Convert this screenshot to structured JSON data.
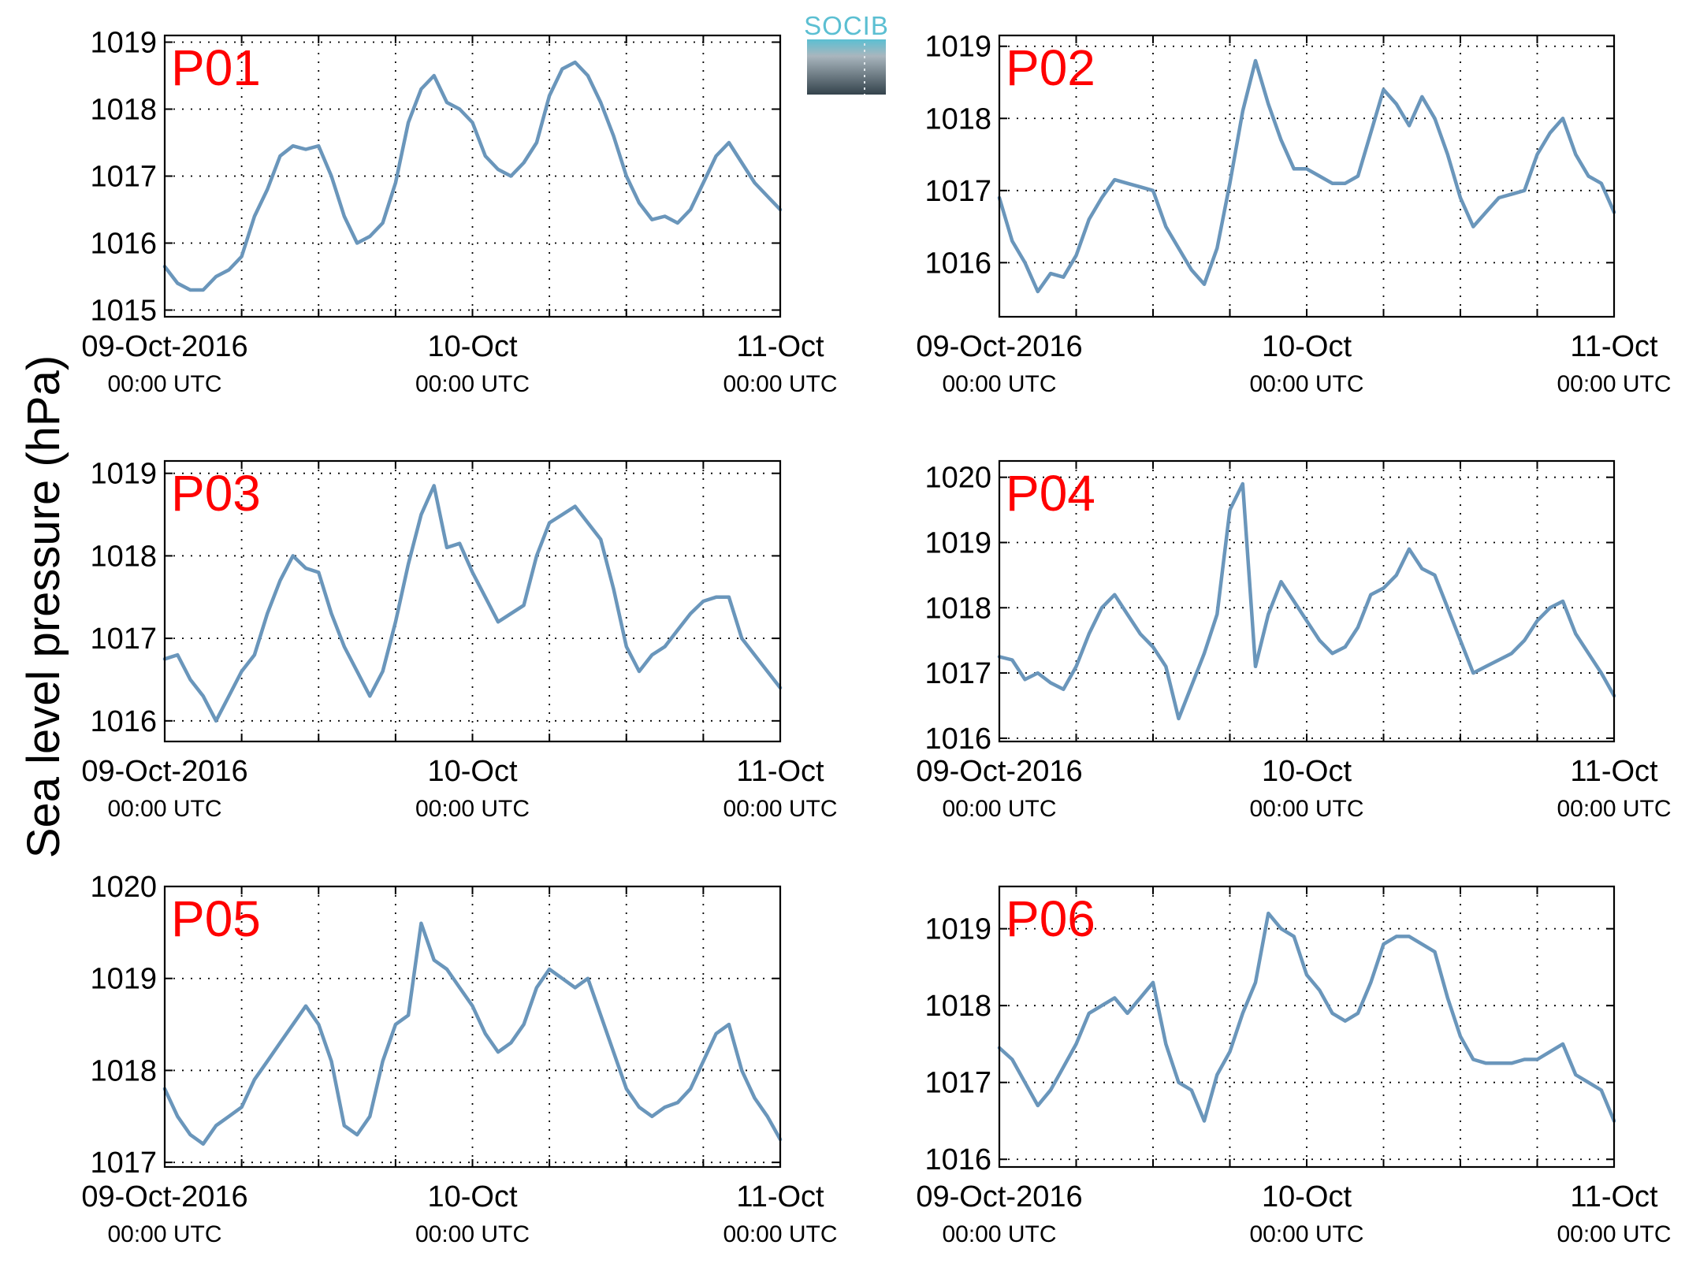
{
  "ylabel": "Sea level pressure (hPa)",
  "logo": {
    "text": "SOCIB",
    "colors": {
      "top": "#5bbfd2",
      "bottom": "#34434c"
    }
  },
  "x_ticks": [
    {
      "main": "09-Oct-2016",
      "sub": "00:00 UTC"
    },
    {
      "main": "10-Oct",
      "sub": "00:00 UTC"
    },
    {
      "main": "11-Oct",
      "sub": "00:00 UTC"
    }
  ],
  "series_color": "#6a96bb",
  "label_color": "#ff0000",
  "chart_data": [
    {
      "type": "line",
      "label": "P01",
      "ylim": [
        1014.9,
        1019.1
      ],
      "yticks": [
        1015,
        1016,
        1017,
        1018,
        1019
      ],
      "xlim": [
        0,
        48
      ],
      "grid": true,
      "x": [
        0,
        1,
        2,
        3,
        4,
        5,
        6,
        7,
        8,
        9,
        10,
        11,
        12,
        13,
        14,
        15,
        16,
        17,
        18,
        19,
        20,
        21,
        22,
        23,
        24,
        25,
        26,
        27,
        28,
        29,
        30,
        31,
        32,
        33,
        34,
        35,
        36,
        37,
        38,
        39,
        40,
        41,
        42,
        43,
        44,
        45,
        46,
        47,
        48
      ],
      "y": [
        1015.65,
        1015.4,
        1015.3,
        1015.3,
        1015.5,
        1015.6,
        1015.8,
        1016.4,
        1016.8,
        1017.3,
        1017.45,
        1017.4,
        1017.45,
        1017.0,
        1016.4,
        1016.0,
        1016.1,
        1016.3,
        1016.9,
        1017.8,
        1018.3,
        1018.5,
        1018.1,
        1018.0,
        1017.8,
        1017.3,
        1017.1,
        1017.0,
        1017.2,
        1017.5,
        1018.2,
        1018.6,
        1018.7,
        1018.5,
        1018.1,
        1017.6,
        1017.0,
        1016.6,
        1016.35,
        1016.4,
        1016.3,
        1016.5,
        1016.9,
        1017.3,
        1017.5,
        1017.2,
        1016.9,
        1016.7,
        1016.5
      ]
    },
    {
      "type": "line",
      "label": "P02",
      "ylim": [
        1015.25,
        1019.15
      ],
      "yticks": [
        1016,
        1017,
        1018,
        1019
      ],
      "xlim": [
        0,
        48
      ],
      "grid": true,
      "x": [
        0,
        1,
        2,
        3,
        4,
        5,
        6,
        7,
        8,
        9,
        10,
        11,
        12,
        13,
        14,
        15,
        16,
        17,
        18,
        19,
        20,
        21,
        22,
        23,
        24,
        25,
        26,
        27,
        28,
        29,
        30,
        31,
        32,
        33,
        34,
        35,
        36,
        37,
        38,
        39,
        40,
        41,
        42,
        43,
        44,
        45,
        46,
        47,
        48
      ],
      "y": [
        1016.9,
        1016.3,
        1016.0,
        1015.6,
        1015.85,
        1015.8,
        1016.1,
        1016.6,
        1016.9,
        1017.15,
        1017.1,
        1017.05,
        1017.0,
        1016.5,
        1016.2,
        1015.9,
        1015.7,
        1016.2,
        1017.1,
        1018.1,
        1018.8,
        1018.2,
        1017.7,
        1017.3,
        1017.3,
        1017.2,
        1017.1,
        1017.1,
        1017.2,
        1017.8,
        1018.4,
        1018.2,
        1017.9,
        1018.3,
        1018.0,
        1017.5,
        1016.9,
        1016.5,
        1016.7,
        1016.9,
        1016.95,
        1017.0,
        1017.5,
        1017.8,
        1018.0,
        1017.5,
        1017.2,
        1017.1,
        1016.7
      ]
    },
    {
      "type": "line",
      "label": "P03",
      "ylim": [
        1015.75,
        1019.15
      ],
      "yticks": [
        1016,
        1017,
        1018,
        1019
      ],
      "xlim": [
        0,
        48
      ],
      "grid": true,
      "x": [
        0,
        1,
        2,
        3,
        4,
        5,
        6,
        7,
        8,
        9,
        10,
        11,
        12,
        13,
        14,
        15,
        16,
        17,
        18,
        19,
        20,
        21,
        22,
        23,
        24,
        25,
        26,
        27,
        28,
        29,
        30,
        31,
        32,
        33,
        34,
        35,
        36,
        37,
        38,
        39,
        40,
        41,
        42,
        43,
        44,
        45,
        46,
        47,
        48
      ],
      "y": [
        1016.75,
        1016.8,
        1016.5,
        1016.3,
        1016.0,
        1016.3,
        1016.6,
        1016.8,
        1017.3,
        1017.7,
        1018.0,
        1017.85,
        1017.8,
        1017.3,
        1016.9,
        1016.6,
        1016.3,
        1016.6,
        1017.2,
        1017.9,
        1018.5,
        1018.85,
        1018.1,
        1018.15,
        1017.8,
        1017.5,
        1017.2,
        1017.3,
        1017.4,
        1018.0,
        1018.4,
        1018.5,
        1018.6,
        1018.4,
        1018.2,
        1017.6,
        1016.9,
        1016.6,
        1016.8,
        1016.9,
        1017.1,
        1017.3,
        1017.45,
        1017.5,
        1017.5,
        1017.0,
        1016.8,
        1016.6,
        1016.4
      ]
    },
    {
      "type": "line",
      "label": "P04",
      "ylim": [
        1015.95,
        1020.25
      ],
      "yticks": [
        1016,
        1017,
        1018,
        1019,
        1020
      ],
      "xlim": [
        0,
        48
      ],
      "grid": true,
      "x": [
        0,
        1,
        2,
        3,
        4,
        5,
        6,
        7,
        8,
        9,
        10,
        11,
        12,
        13,
        14,
        15,
        16,
        17,
        18,
        19,
        20,
        21,
        22,
        23,
        24,
        25,
        26,
        27,
        28,
        29,
        30,
        31,
        32,
        33,
        34,
        35,
        36,
        37,
        38,
        39,
        40,
        41,
        42,
        43,
        44,
        45,
        46,
        47,
        48
      ],
      "y": [
        1017.25,
        1017.2,
        1016.9,
        1017.0,
        1016.85,
        1016.75,
        1017.1,
        1017.6,
        1018.0,
        1018.2,
        1017.9,
        1017.6,
        1017.4,
        1017.1,
        1016.3,
        1016.8,
        1017.3,
        1017.9,
        1019.5,
        1019.9,
        1017.1,
        1017.9,
        1018.4,
        1018.1,
        1017.8,
        1017.5,
        1017.3,
        1017.4,
        1017.7,
        1018.2,
        1018.3,
        1018.5,
        1018.9,
        1018.6,
        1018.5,
        1018.0,
        1017.5,
        1017.0,
        1017.1,
        1017.2,
        1017.3,
        1017.5,
        1017.8,
        1018.0,
        1018.1,
        1017.6,
        1017.3,
        1017.0,
        1016.65
      ]
    },
    {
      "type": "line",
      "label": "P05",
      "ylim": [
        1016.95,
        1020.0
      ],
      "yticks": [
        1017,
        1018,
        1019,
        1020
      ],
      "xlim": [
        0,
        48
      ],
      "grid": true,
      "x": [
        0,
        1,
        2,
        3,
        4,
        5,
        6,
        7,
        8,
        9,
        10,
        11,
        12,
        13,
        14,
        15,
        16,
        17,
        18,
        19,
        20,
        21,
        22,
        23,
        24,
        25,
        26,
        27,
        28,
        29,
        30,
        31,
        32,
        33,
        34,
        35,
        36,
        37,
        38,
        39,
        40,
        41,
        42,
        43,
        44,
        45,
        46,
        47,
        48
      ],
      "y": [
        1017.8,
        1017.5,
        1017.3,
        1017.2,
        1017.4,
        1017.5,
        1017.6,
        1017.9,
        1018.1,
        1018.3,
        1018.5,
        1018.7,
        1018.5,
        1018.1,
        1017.4,
        1017.3,
        1017.5,
        1018.1,
        1018.5,
        1018.6,
        1019.6,
        1019.2,
        1019.1,
        1018.9,
        1018.7,
        1018.4,
        1018.2,
        1018.3,
        1018.5,
        1018.9,
        1019.1,
        1019.0,
        1018.9,
        1019.0,
        1018.6,
        1018.2,
        1017.8,
        1017.6,
        1017.5,
        1017.6,
        1017.65,
        1017.8,
        1018.1,
        1018.4,
        1018.5,
        1018.0,
        1017.7,
        1017.5,
        1017.25
      ]
    },
    {
      "type": "line",
      "label": "P06",
      "ylim": [
        1015.9,
        1019.55
      ],
      "yticks": [
        1016,
        1017,
        1018,
        1019
      ],
      "xlim": [
        0,
        48
      ],
      "grid": true,
      "x": [
        0,
        1,
        2,
        3,
        4,
        5,
        6,
        7,
        8,
        9,
        10,
        11,
        12,
        13,
        14,
        15,
        16,
        17,
        18,
        19,
        20,
        21,
        22,
        23,
        24,
        25,
        26,
        27,
        28,
        29,
        30,
        31,
        32,
        33,
        34,
        35,
        36,
        37,
        38,
        39,
        40,
        41,
        42,
        43,
        44,
        45,
        46,
        47,
        48
      ],
      "y": [
        1017.45,
        1017.3,
        1017.0,
        1016.7,
        1016.9,
        1017.2,
        1017.5,
        1017.9,
        1018.0,
        1018.1,
        1017.9,
        1018.1,
        1018.3,
        1017.5,
        1017.0,
        1016.9,
        1016.5,
        1017.1,
        1017.4,
        1017.9,
        1018.3,
        1019.2,
        1019.0,
        1018.9,
        1018.4,
        1018.2,
        1017.9,
        1017.8,
        1017.9,
        1018.3,
        1018.8,
        1018.9,
        1018.9,
        1018.8,
        1018.7,
        1018.1,
        1017.6,
        1017.3,
        1017.25,
        1017.25,
        1017.25,
        1017.3,
        1017.3,
        1017.4,
        1017.5,
        1017.1,
        1017.0,
        1016.9,
        1016.5
      ]
    }
  ]
}
